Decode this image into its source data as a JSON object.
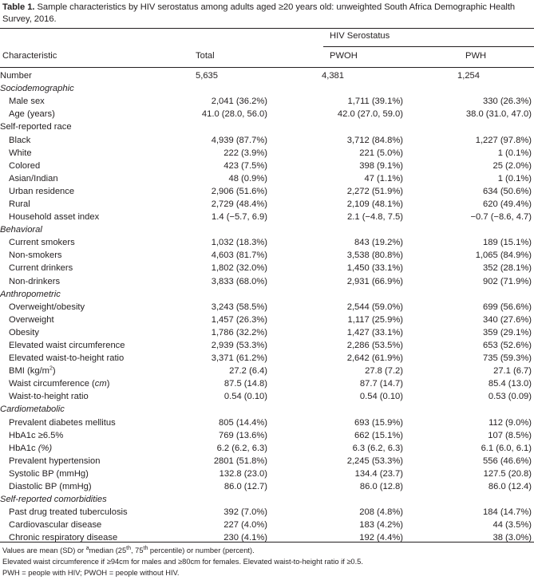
{
  "caption": {
    "label": "Table 1.",
    "text": " Sample characteristics by HIV serostatus among adults aged ≥20 years old: unweighted South Africa Demographic Health Survey, 2016."
  },
  "header": {
    "group": "HIV Serostatus",
    "characteristic": "Characteristic",
    "total": "Total",
    "pwoh": "PWOH",
    "pwh": "PWH"
  },
  "rows": [
    {
      "label": "Number",
      "total": "5,635",
      "pwoh": "4,381",
      "pwh": "1,254"
    },
    {
      "section": "Sociodemographic"
    },
    {
      "label": "Male sex",
      "total": "2,041 (36.2%)",
      "pwoh": "1,711 (39.1%)",
      "pwh": "330 (26.3%)"
    },
    {
      "label": "Age (years)",
      "total": "41.0 (28.0, 56.0)",
      "pwoh": "42.0 (27.0, 59.0)",
      "pwh": "38.0 (31.0, 47.0)"
    },
    {
      "section": "Self-reported race",
      "plain": true
    },
    {
      "label": "Black",
      "total": "4,939 (87.7%)",
      "pwoh": "3,712 (84.8%)",
      "pwh": "1,227 (97.8%)"
    },
    {
      "label": "White",
      "total": "222 (3.9%)",
      "pwoh": "221 (5.0%)",
      "pwh": "1 (0.1%)"
    },
    {
      "label": "Colored",
      "total": "423 (7.5%)",
      "pwoh": "398 (9.1%)",
      "pwh": "25 (2.0%)"
    },
    {
      "label": "Asian/Indian",
      "total": "48 (0.9%)",
      "pwoh": "47 (1.1%)",
      "pwh": "1 (0.1%)"
    },
    {
      "label": "Urban residence",
      "total": "2,906 (51.6%)",
      "pwoh": "2,272 (51.9%)",
      "pwh": "634 (50.6%)"
    },
    {
      "label": "Rural",
      "total": "2,729 (48.4%)",
      "pwoh": "2,109 (48.1%)",
      "pwh": "620 (49.4%)"
    },
    {
      "label": "Household asset index",
      "total": "1.4 (−5.7, 6.9)",
      "pwoh": "2.1 (−4.8, 7.5)",
      "pwh": "−0.7 (−8.6, 4.7)"
    },
    {
      "section": "Behavioral"
    },
    {
      "label": "Current smokers",
      "total": "1,032 (18.3%)",
      "pwoh": "843 (19.2%)",
      "pwh": "189 (15.1%)"
    },
    {
      "label": "Non-smokers",
      "total": "4,603 (81.7%)",
      "pwoh": "3,538 (80.8%)",
      "pwh": "1,065 (84.9%)"
    },
    {
      "label": "Current drinkers",
      "total": "1,802 (32.0%)",
      "pwoh": "1,450 (33.1%)",
      "pwh": "352 (28.1%)"
    },
    {
      "label": "Non-drinkers",
      "total": "3,833 (68.0%)",
      "pwoh": "2,931 (66.9%)",
      "pwh": "902 (71.9%)"
    },
    {
      "section": "Anthropometric"
    },
    {
      "label": "Overweight/obesity",
      "total": "3,243 (58.5%)",
      "pwoh": "2,544 (59.0%)",
      "pwh": "699 (56.6%)"
    },
    {
      "label": "Overweight",
      "total": "1,457 (26.3%)",
      "pwoh": "1,117 (25.9%)",
      "pwh": "340 (27.6%)"
    },
    {
      "label": "Obesity",
      "total": "1,786 (32.2%)",
      "pwoh": "1,427 (33.1%)",
      "pwh": "359 (29.1%)"
    },
    {
      "label": "Elevated waist circumference",
      "total": "2,939 (53.3%)",
      "pwoh": "2,286 (53.5%)",
      "pwh": "653 (52.6%)"
    },
    {
      "label": "Elevated waist-to-height ratio",
      "total": "3,371 (61.2%)",
      "pwoh": "2,642 (61.9%)",
      "pwh": "735 (59.3%)"
    },
    {
      "label": "BMI (kg/m",
      "sup": "2",
      "after": ")",
      "total": "27.2 (6.4)",
      "pwoh": "27.8 (7.2)",
      "pwh": "27.1 (6.7)"
    },
    {
      "label": "Waist circumference (",
      "em": "cm",
      "after": ")",
      "total": "87.5 (14.8)",
      "pwoh": "87.7 (14.7)",
      "pwh": "85.4 (13.0)"
    },
    {
      "label": "Waist-to-height ratio",
      "total": "0.54 (0.10)",
      "pwoh": "0.54 (0.10)",
      "pwh": "0.53 (0.09)"
    },
    {
      "section": "Cardiometabolic"
    },
    {
      "label": "Prevalent diabetes mellitus",
      "total": "805 (14.4%)",
      "pwoh": "693 (15.9%)",
      "pwh": "112 (9.0%)"
    },
    {
      "label": "HbA1c ≥6.5%",
      "total": "769 (13.6%)",
      "pwoh": "662 (15.1%)",
      "pwh": "107 (8.5%)"
    },
    {
      "label": "HbA1c ",
      "em": "(%)",
      "total": "6.2 (6.2, 6.3)",
      "pwoh": "6.3 (6.2, 6.3)",
      "pwh": "6.1 (6.0, 6.1)"
    },
    {
      "label": "Prevalent hypertension",
      "total": "2801 (51.8%)",
      "pwoh": "2,245 (53.3%)",
      "pwh": "556 (46.6%)"
    },
    {
      "label": "Systolic BP (mmHg)",
      "total": "132.8 (23.0)",
      "pwoh": "134.4 (23.7)",
      "pwh": "127.5 (20.8)"
    },
    {
      "label": "Diastolic BP (mmHg)",
      "total": "86.0 (12.7)",
      "pwoh": "86.0 (12.8)",
      "pwh": "86.0 (12.4)"
    },
    {
      "section": "Self-reported comorbidities"
    },
    {
      "label": "Past drug treated tuberculosis",
      "total": "392 (7.0%)",
      "pwoh": "208 (4.8%)",
      "pwh": "184 (14.7%)"
    },
    {
      "label": "Cardiovascular disease",
      "total": "227 (4.0%)",
      "pwoh": "183 (4.2%)",
      "pwh": "44 (3.5%)"
    },
    {
      "label": "Chronic respiratory disease",
      "total": "230 (4.1%)",
      "pwoh": "192 (4.4%)",
      "pwh": "38 (3.0%)"
    }
  ],
  "footnotes": {
    "line1_a": "Values are mean (SD) or ",
    "line1_sup_a": "a",
    "line1_b": "median (25",
    "line1_sup_b": "th",
    "line1_c": ", 75",
    "line1_sup_c": "th",
    "line1_d": " percentile) or number (percent).",
    "line2": "Elevated waist circumference if ≥94cm for males and ≥80cm for females. Elevated waist-to-height ratio if ≥0.5.",
    "line3": "PWH = people with HIV; PWOH = people without HIV."
  }
}
